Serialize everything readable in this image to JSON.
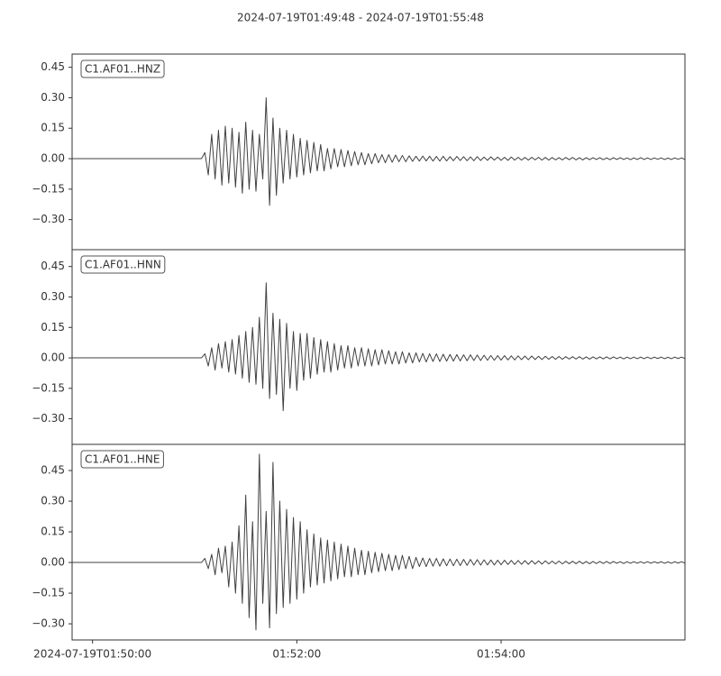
{
  "title": "2024-07-19T01:49:48  -  2024-07-19T01:55:48",
  "chart_data": [
    {
      "type": "line",
      "x": [
        0,
        2,
        4,
        6,
        8,
        10,
        12,
        14,
        16,
        18,
        20,
        22,
        24,
        26,
        28,
        30,
        32,
        34,
        36,
        38,
        40,
        42,
        44,
        46,
        48,
        50,
        52,
        54,
        56,
        58,
        60,
        62,
        64,
        66,
        68,
        70,
        72,
        74,
        76,
        78,
        80,
        82,
        84,
        86,
        88,
        90,
        92,
        94,
        96,
        98,
        100,
        102,
        104,
        106,
        108,
        110,
        112,
        114,
        116,
        118,
        120,
        122,
        124,
        126,
        128,
        130,
        132,
        134,
        136,
        138,
        140,
        142,
        144,
        146,
        148,
        150,
        152,
        154,
        156,
        158,
        160,
        162,
        164,
        166,
        168,
        170,
        172,
        174,
        176,
        178,
        180,
        182,
        184,
        186,
        188,
        190,
        192,
        194,
        196,
        198,
        200,
        202,
        204,
        206,
        208,
        210,
        212,
        214,
        216,
        218,
        220,
        222,
        224,
        226,
        228,
        230,
        232,
        234,
        236,
        238,
        240,
        242,
        244,
        246,
        248,
        250,
        252,
        254,
        256,
        258,
        260,
        262,
        264,
        266,
        268,
        270,
        272,
        274,
        276,
        278,
        280,
        282,
        284,
        286,
        288,
        290,
        292,
        294,
        296,
        298,
        300,
        302,
        304,
        306,
        308,
        310,
        312,
        314,
        316,
        318,
        320,
        322,
        324,
        326,
        328,
        330,
        332,
        334,
        336,
        338,
        340,
        342,
        344,
        346,
        348,
        350,
        352,
        354,
        356,
        358,
        360
      ],
      "series": [
        {
          "name": "C1.AF01..HNZ",
          "color": "#404040",
          "values": [
            0,
            0,
            0,
            0,
            0,
            0,
            0,
            0,
            0,
            0,
            0,
            0,
            0,
            0,
            0,
            0,
            0,
            0,
            0,
            0,
            0,
            0,
            0,
            0,
            0,
            0,
            0,
            0,
            0,
            0,
            0,
            0,
            0,
            0,
            0,
            0,
            0,
            0,
            0,
            0.03,
            -0.08,
            0.12,
            -0.1,
            0.14,
            -0.13,
            0.16,
            -0.12,
            0.15,
            -0.14,
            0.13,
            -0.17,
            0.18,
            -0.15,
            0.14,
            -0.16,
            0.12,
            -0.1,
            0.3,
            -0.23,
            0.2,
            -0.18,
            0.15,
            -0.12,
            0.14,
            -0.1,
            0.12,
            -0.09,
            0.1,
            -0.08,
            0.09,
            -0.07,
            0.08,
            -0.06,
            0.07,
            -0.06,
            0.05,
            -0.05,
            0.05,
            -0.04,
            0.045,
            -0.04,
            0.04,
            -0.035,
            0.035,
            -0.03,
            0.03,
            -0.03,
            0.025,
            -0.025,
            0.025,
            -0.02,
            0.02,
            -0.02,
            0.02,
            -0.018,
            0.018,
            -0.015,
            0.016,
            -0.015,
            0.014,
            -0.013,
            0.012,
            -0.012,
            0.013,
            -0.011,
            0.012,
            -0.012,
            0.011,
            -0.012,
            0.012,
            -0.011,
            0.01,
            -0.01,
            0.011,
            -0.009,
            0.01,
            -0.01,
            0.009,
            -0.01,
            0.01,
            -0.009,
            0.008,
            -0.008,
            0.009,
            -0.007,
            0.008,
            -0.008,
            0.007,
            -0.008,
            0.008,
            -0.007,
            0.007,
            -0.007,
            0.006,
            -0.007,
            0.007,
            -0.006,
            0.007,
            -0.007,
            0.006,
            -0.007,
            0.006,
            -0.006,
            0.005,
            -0.006,
            0.006,
            -0.005,
            0.006,
            -0.006,
            0.005,
            -0.006,
            0.005,
            -0.005,
            0.005,
            -0.004,
            0.005,
            -0.005,
            0.004,
            -0.005,
            0.005,
            -0.004,
            0.005,
            -0.004,
            0.004,
            -0.005,
            0.004,
            -0.004,
            0.005,
            -0.004,
            0.004,
            -0.004,
            0.004,
            -0.003,
            0.004,
            -0.004,
            0.003,
            -0.004,
            0.004,
            -0.003,
            0.004,
            -0.004
          ]
        }
      ],
      "xlim": [
        0,
        360
      ],
      "ylim": [
        -0.448,
        0.515
      ],
      "yticks": [
        0.45,
        {
          "value": 0.3,
          "label": "0.30"
        },
        0.15,
        {
          "value": 0,
          "label": "0.00"
        },
        {
          "value": -0.15,
          "label": "−0.15"
        },
        {
          "value": -0.3,
          "label": "−0.30"
        }
      ]
    },
    {
      "type": "line",
      "x": [
        0,
        2,
        4,
        6,
        8,
        10,
        12,
        14,
        16,
        18,
        20,
        22,
        24,
        26,
        28,
        30,
        32,
        34,
        36,
        38,
        40,
        42,
        44,
        46,
        48,
        50,
        52,
        54,
        56,
        58,
        60,
        62,
        64,
        66,
        68,
        70,
        72,
        74,
        76,
        78,
        80,
        82,
        84,
        86,
        88,
        90,
        92,
        94,
        96,
        98,
        100,
        102,
        104,
        106,
        108,
        110,
        112,
        114,
        116,
        118,
        120,
        122,
        124,
        126,
        128,
        130,
        132,
        134,
        136,
        138,
        140,
        142,
        144,
        146,
        148,
        150,
        152,
        154,
        156,
        158,
        160,
        162,
        164,
        166,
        168,
        170,
        172,
        174,
        176,
        178,
        180,
        182,
        184,
        186,
        188,
        190,
        192,
        194,
        196,
        198,
        200,
        202,
        204,
        206,
        208,
        210,
        212,
        214,
        216,
        218,
        220,
        222,
        224,
        226,
        228,
        230,
        232,
        234,
        236,
        238,
        240,
        242,
        244,
        246,
        248,
        250,
        252,
        254,
        256,
        258,
        260,
        262,
        264,
        266,
        268,
        270,
        272,
        274,
        276,
        278,
        280,
        282,
        284,
        286,
        288,
        290,
        292,
        294,
        296,
        298,
        300,
        302,
        304,
        306,
        308,
        310,
        312,
        314,
        316,
        318,
        320,
        322,
        324,
        326,
        328,
        330,
        332,
        334,
        336,
        338,
        340,
        342,
        344,
        346,
        348,
        350,
        352,
        354,
        356,
        358,
        360
      ],
      "series": [
        {
          "name": "C1.AF01..HNN",
          "color": "#404040",
          "values": [
            0,
            0,
            0,
            0,
            0,
            0,
            0,
            0,
            0,
            0,
            0,
            0,
            0,
            0,
            0,
            0,
            0,
            0,
            0,
            0,
            0,
            0,
            0,
            0,
            0,
            0,
            0,
            0,
            0,
            0,
            0,
            0,
            0,
            0,
            0,
            0,
            0,
            0,
            0,
            0.02,
            -0.04,
            0.05,
            -0.06,
            0.07,
            -0.05,
            0.08,
            -0.07,
            0.09,
            -0.08,
            0.11,
            -0.1,
            0.13,
            -0.12,
            0.15,
            -0.13,
            0.2,
            -0.15,
            0.37,
            -0.2,
            0.22,
            -0.18,
            0.19,
            -0.26,
            0.17,
            -0.15,
            0.13,
            -0.16,
            0.12,
            -0.11,
            0.12,
            -0.1,
            0.1,
            -0.08,
            0.09,
            -0.07,
            0.08,
            -0.07,
            0.07,
            -0.06,
            0.06,
            -0.05,
            0.06,
            -0.05,
            0.05,
            -0.04,
            0.05,
            -0.04,
            0.045,
            -0.04,
            0.04,
            -0.035,
            0.04,
            -0.03,
            0.035,
            -0.03,
            0.03,
            -0.03,
            0.03,
            -0.025,
            0.025,
            -0.025,
            0.025,
            -0.02,
            0.022,
            -0.02,
            0.02,
            -0.018,
            0.02,
            -0.018,
            0.018,
            -0.016,
            0.017,
            -0.016,
            0.016,
            -0.015,
            0.015,
            -0.014,
            0.015,
            -0.013,
            0.014,
            -0.013,
            0.013,
            -0.012,
            0.012,
            -0.012,
            0.011,
            -0.011,
            0.011,
            -0.01,
            0.01,
            -0.01,
            0.01,
            -0.009,
            0.009,
            -0.009,
            0.009,
            -0.008,
            0.008,
            -0.008,
            0.008,
            -0.007,
            0.007,
            -0.007,
            0.007,
            -0.007,
            0.006,
            -0.006,
            0.006,
            -0.006,
            0.006,
            -0.006,
            0.005,
            -0.006,
            0.005,
            -0.005,
            0.005,
            -0.005,
            0.005,
            -0.005,
            0.005,
            -0.004,
            0.004,
            -0.005,
            0.004,
            -0.004,
            0.004,
            -0.004,
            0.004,
            -0.004,
            0.004,
            -0.004,
            0.004,
            -0.003,
            0.004,
            -0.004,
            0.003,
            -0.004,
            0.004,
            -0.003,
            0.004,
            -0.003
          ]
        }
      ],
      "xlim": [
        0,
        360
      ],
      "ylim": [
        -0.426,
        0.533
      ],
      "yticks": [
        0.45,
        {
          "value": 0.3,
          "label": "0.30"
        },
        0.15,
        {
          "value": 0,
          "label": "0.00"
        },
        {
          "value": -0.15,
          "label": "−0.15"
        },
        {
          "value": -0.3,
          "label": "−0.30"
        }
      ]
    },
    {
      "type": "line",
      "x": [
        0,
        2,
        4,
        6,
        8,
        10,
        12,
        14,
        16,
        18,
        20,
        22,
        24,
        26,
        28,
        30,
        32,
        34,
        36,
        38,
        40,
        42,
        44,
        46,
        48,
        50,
        52,
        54,
        56,
        58,
        60,
        62,
        64,
        66,
        68,
        70,
        72,
        74,
        76,
        78,
        80,
        82,
        84,
        86,
        88,
        90,
        92,
        94,
        96,
        98,
        100,
        102,
        104,
        106,
        108,
        110,
        112,
        114,
        116,
        118,
        120,
        122,
        124,
        126,
        128,
        130,
        132,
        134,
        136,
        138,
        140,
        142,
        144,
        146,
        148,
        150,
        152,
        154,
        156,
        158,
        160,
        162,
        164,
        166,
        168,
        170,
        172,
        174,
        176,
        178,
        180,
        182,
        184,
        186,
        188,
        190,
        192,
        194,
        196,
        198,
        200,
        202,
        204,
        206,
        208,
        210,
        212,
        214,
        216,
        218,
        220,
        222,
        224,
        226,
        228,
        230,
        232,
        234,
        236,
        238,
        240,
        242,
        244,
        246,
        248,
        250,
        252,
        254,
        256,
        258,
        260,
        262,
        264,
        266,
        268,
        270,
        272,
        274,
        276,
        278,
        280,
        282,
        284,
        286,
        288,
        290,
        292,
        294,
        296,
        298,
        300,
        302,
        304,
        306,
        308,
        310,
        312,
        314,
        316,
        318,
        320,
        322,
        324,
        326,
        328,
        330,
        332,
        334,
        336,
        338,
        340,
        342,
        344,
        346,
        348,
        350,
        352,
        354,
        356,
        358,
        360
      ],
      "series": [
        {
          "name": "C1.AF01..HNE",
          "color": "#404040",
          "values": [
            0,
            0,
            0,
            0,
            0,
            0,
            0,
            0,
            0,
            0,
            0,
            0,
            0,
            0,
            0,
            0,
            0,
            0,
            0,
            0,
            0,
            0,
            0,
            0,
            0,
            0,
            0,
            0,
            0,
            0,
            0,
            0,
            0,
            0,
            0,
            0,
            0,
            0,
            0,
            0.02,
            -0.03,
            0.04,
            -0.06,
            0.07,
            -0.05,
            0.08,
            -0.12,
            0.1,
            -0.15,
            0.18,
            -0.2,
            0.33,
            -0.27,
            0.2,
            -0.33,
            0.53,
            -0.2,
            0.25,
            -0.32,
            0.49,
            -0.25,
            0.3,
            -0.22,
            0.26,
            -0.2,
            0.22,
            -0.18,
            0.2,
            -0.15,
            0.16,
            -0.12,
            0.14,
            -0.11,
            0.12,
            -0.1,
            0.11,
            -0.09,
            0.1,
            -0.08,
            0.09,
            -0.07,
            0.08,
            -0.07,
            0.07,
            -0.06,
            0.06,
            -0.06,
            0.055,
            -0.05,
            0.05,
            -0.045,
            0.045,
            -0.04,
            0.04,
            -0.04,
            0.035,
            -0.035,
            0.035,
            -0.03,
            0.03,
            -0.03,
            0.025,
            -0.02,
            0.022,
            -0.02,
            0.02,
            -0.018,
            0.02,
            -0.018,
            0.018,
            -0.016,
            0.017,
            -0.016,
            0.016,
            -0.015,
            0.015,
            -0.014,
            0.015,
            -0.013,
            0.014,
            -0.013,
            0.013,
            -0.012,
            0.012,
            -0.012,
            0.011,
            -0.011,
            0.011,
            -0.01,
            0.01,
            -0.01,
            0.01,
            -0.009,
            0.009,
            -0.009,
            0.009,
            -0.008,
            0.008,
            -0.008,
            0.008,
            -0.007,
            0.007,
            -0.007,
            0.007,
            -0.007,
            0.006,
            -0.006,
            0.006,
            -0.006,
            0.006,
            -0.006,
            0.005,
            -0.006,
            0.005,
            -0.005,
            0.005,
            -0.005,
            0.005,
            -0.005,
            0.005,
            -0.004,
            0.004,
            -0.005,
            0.004,
            -0.004,
            0.004,
            -0.004,
            0.004,
            -0.004,
            0.004,
            -0.004,
            0.004,
            -0.003,
            0.004,
            -0.004,
            0.003,
            -0.004,
            0.004,
            -0.003,
            0.004,
            -0.003
          ]
        }
      ],
      "xlim": [
        0,
        360
      ],
      "ylim": [
        -0.379,
        0.578
      ],
      "yticks": [
        0.45,
        {
          "value": 0.3,
          "label": "0.30"
        },
        0.15,
        {
          "value": 0,
          "label": "0.00"
        },
        {
          "value": -0.15,
          "label": "−0.15"
        },
        {
          "value": -0.3,
          "label": "−0.30"
        }
      ],
      "xticks": [
        {
          "value": 12,
          "label": "2024-07-19T01:50:00"
        },
        {
          "value": 132,
          "label": "01:52:00"
        },
        {
          "value": 252,
          "label": "01:54:00"
        }
      ]
    }
  ]
}
